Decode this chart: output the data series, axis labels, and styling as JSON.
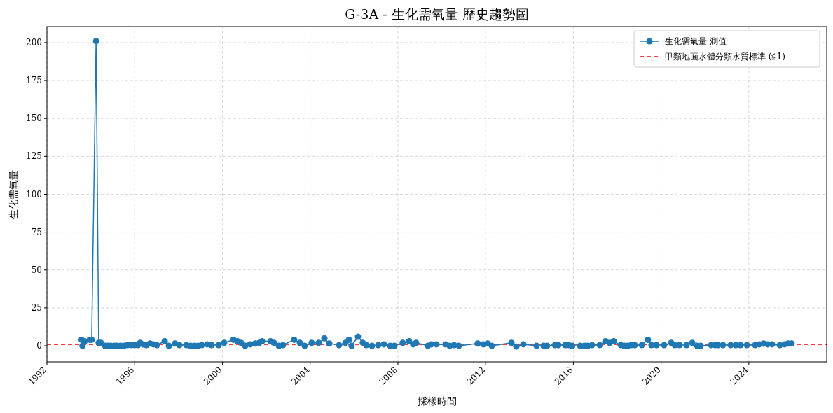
{
  "chart_data": {
    "type": "line",
    "title": "G-3A - 生化需氧量 歷史趨勢圖",
    "xlabel": "採樣時間",
    "ylabel": "生化需氧量",
    "x": [
      1993.58,
      1993.62,
      1993.72,
      1993.95,
      1994.04,
      1994.24,
      1994.36,
      1994.46,
      1994.65,
      1994.78,
      1994.91,
      1995.07,
      1995.19,
      1995.35,
      1995.51,
      1995.67,
      1995.83,
      1995.99,
      1996.15,
      1996.25,
      1996.38,
      1996.54,
      1996.7,
      1996.85,
      1997.01,
      1997.37,
      1997.56,
      1997.84,
      1998.04,
      1998.36,
      1998.55,
      1998.74,
      1998.9,
      1999.06,
      1999.31,
      1999.51,
      1999.83,
      2000.08,
      2000.5,
      2000.69,
      2000.85,
      2001.04,
      2001.26,
      2001.49,
      2001.68,
      2001.81,
      2002.19,
      2002.35,
      2002.57,
      2002.76,
      2003.27,
      2003.53,
      2003.75,
      2004.07,
      2004.39,
      2004.65,
      2004.87,
      2005.32,
      2005.61,
      2005.77,
      2005.89,
      2006.18,
      2006.4,
      2006.56,
      2006.82,
      2007.11,
      2007.36,
      2007.65,
      2007.84,
      2008.22,
      2008.51,
      2008.7,
      2008.83,
      2009.37,
      2009.53,
      2009.76,
      2010.17,
      2010.36,
      2010.56,
      2010.78,
      2011.64,
      2011.9,
      2012.09,
      2012.28,
      2013.18,
      2013.4,
      2013.72,
      2014.32,
      2014.64,
      2014.8,
      2015.16,
      2015.32,
      2015.63,
      2015.79,
      2015.95,
      2016.31,
      2016.5,
      2016.66,
      2016.85,
      2017.2,
      2017.46,
      2017.65,
      2017.84,
      2018.16,
      2018.32,
      2018.48,
      2018.64,
      2018.8,
      2019.12,
      2019.4,
      2019.56,
      2019.79,
      2020.14,
      2020.46,
      2020.62,
      2020.84,
      2021.16,
      2021.42,
      2021.64,
      2021.8,
      2022.28,
      2022.47,
      2022.6,
      2022.82,
      2023.17,
      2023.4,
      2023.62,
      2023.91,
      2024.29,
      2024.48,
      2024.67,
      2024.86,
      2025.06,
      2025.41,
      2025.63,
      2025.79,
      2025.95
    ],
    "series": [
      {
        "name": "生化需氧量 測值",
        "color": "#1f77b4",
        "values": [
          4,
          0,
          3,
          4,
          4,
          201,
          2,
          2,
          0,
          0,
          0,
          0,
          0,
          0,
          0,
          0.5,
          0.5,
          0.5,
          0.5,
          2,
          1,
          0.5,
          1.5,
          1,
          0.5,
          3,
          0,
          1.5,
          0.5,
          0.5,
          0,
          0,
          0,
          0.5,
          1,
          0.5,
          0.5,
          2,
          4,
          3,
          2,
          0,
          1,
          1.5,
          2,
          3,
          3,
          2,
          0,
          0.5,
          4,
          2,
          0,
          2,
          2,
          5,
          1.5,
          0.5,
          2,
          4,
          0,
          6,
          2,
          0.5,
          0,
          0.5,
          1,
          0,
          0,
          2,
          3,
          1,
          2,
          0,
          1,
          1,
          1,
          0,
          0.5,
          0,
          1.5,
          1,
          1.5,
          0,
          2,
          -0.5,
          1,
          0,
          0,
          0,
          0.5,
          0.5,
          0.5,
          0.5,
          0,
          0,
          0,
          0,
          0.5,
          0.5,
          3,
          2,
          3,
          0.5,
          0,
          0,
          0.5,
          0.5,
          0.5,
          4,
          0.5,
          0.5,
          0.5,
          2,
          0.5,
          0.5,
          0.5,
          2,
          0,
          0,
          0.5,
          0.5,
          0.5,
          0.5,
          0.5,
          0.5,
          0.5,
          0.5,
          0.5,
          1,
          1.5,
          1,
          1,
          0.5,
          1,
          1.5,
          1.5
        ]
      }
    ],
    "xlim": [
      1992,
      2027.55
    ],
    "ylim": [
      -10.6,
      210.6
    ],
    "xticks": [
      1992,
      1996,
      2000,
      2004,
      2008,
      2012,
      2016,
      2020,
      2024
    ],
    "yticks": [
      0,
      25,
      50,
      75,
      100,
      125,
      150,
      175,
      200
    ],
    "grid": true,
    "legend": "top right",
    "marker": "circle",
    "line_style": "solid",
    "ref_lines": [
      {
        "axis": "y",
        "value": 1,
        "label": "甲類地面水體分類水質標準 (≦1)",
        "color": "#ff0000",
        "line_style": "dashed"
      }
    ]
  }
}
